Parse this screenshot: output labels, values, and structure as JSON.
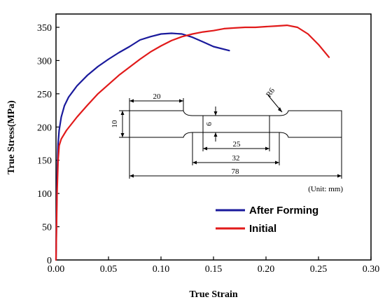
{
  "chart_data": {
    "type": "line",
    "title": "",
    "xlabel": "True Strain",
    "ylabel": "True Stress(MPa)",
    "xlim": [
      0,
      0.3
    ],
    "ylim": [
      0,
      370
    ],
    "xticks": [
      0.0,
      0.05,
      0.1,
      0.15,
      0.2,
      0.25,
      0.3
    ],
    "xtick_labels": [
      "0.00",
      "0.05",
      "0.10",
      "0.15",
      "0.20",
      "0.25",
      "0.30"
    ],
    "yticks": [
      0,
      50,
      100,
      150,
      200,
      250,
      300,
      350
    ],
    "ytick_labels": [
      "0",
      "50",
      "100",
      "150",
      "200",
      "250",
      "300",
      "350"
    ],
    "grid": false,
    "legend_position": "bottom-right",
    "series": [
      {
        "name": "After Forming",
        "color": "#1a1a9c",
        "x": [
          0,
          0.001,
          0.002,
          0.003,
          0.005,
          0.008,
          0.012,
          0.02,
          0.03,
          0.04,
          0.05,
          0.06,
          0.07,
          0.08,
          0.09,
          0.1,
          0.11,
          0.12,
          0.13,
          0.14,
          0.15,
          0.165
        ],
        "y": [
          0,
          120,
          175,
          195,
          215,
          232,
          245,
          262,
          278,
          291,
          302,
          312,
          321,
          331,
          336,
          340,
          341,
          340,
          335,
          328,
          321,
          315
        ]
      },
      {
        "name": "Initial",
        "color": "#e11a1a",
        "x": [
          0,
          0.001,
          0.002,
          0.003,
          0.005,
          0.01,
          0.02,
          0.03,
          0.04,
          0.05,
          0.06,
          0.07,
          0.08,
          0.09,
          0.1,
          0.11,
          0.12,
          0.13,
          0.14,
          0.15,
          0.16,
          0.17,
          0.18,
          0.19,
          0.2,
          0.21,
          0.22,
          0.23,
          0.24,
          0.25,
          0.26
        ],
        "y": [
          0,
          100,
          150,
          172,
          182,
          195,
          215,
          233,
          250,
          264,
          278,
          290,
          302,
          313,
          322,
          330,
          336,
          340,
          343,
          345,
          348,
          349,
          350,
          350,
          351,
          352,
          353,
          350,
          340,
          324,
          305
        ]
      }
    ]
  },
  "inset": {
    "dimensions": [
      "20",
      "R6",
      "10",
      "6",
      "25",
      "32",
      "78"
    ],
    "unit_label": "(Unit: mm)"
  }
}
